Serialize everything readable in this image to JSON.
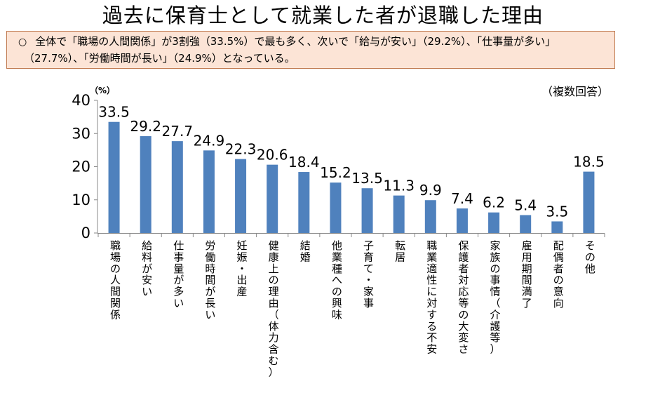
{
  "header": {
    "title": "過去に保育士として就業した者が退職した理由"
  },
  "summary": {
    "bullet": "○",
    "line1": "全体で「職場の人間関係」が3割強（33.5%）で最も多く、次いで「給与が安い」（29.2%）、「仕事量が多い」",
    "line2": "（27.7%）、「労働時間が長い」（24.9%）となっている。"
  },
  "chart_data": {
    "type": "bar",
    "unit_label": "（%）",
    "note": "（複数回答）",
    "ylim": [
      0,
      40
    ],
    "yticks": [
      0,
      10,
      20,
      30,
      40
    ],
    "bar_color": "#4f81bd",
    "categories": [
      "職場の人間関係",
      "給料が安い",
      "仕事量が多い",
      "労働時間が長い",
      "妊娠・出産",
      "健康上の理由（体力含む）",
      "結婚",
      "他業種への興味",
      "子育て・家事",
      "転居",
      "職業適性に対する不安",
      "保護者対応等の大変さ",
      "家族の事情（介護等）",
      "雇用期間満了",
      "配偶者の意向",
      "その他"
    ],
    "values": [
      33.5,
      29.2,
      27.7,
      24.9,
      22.3,
      20.6,
      18.4,
      15.2,
      13.5,
      11.3,
      9.9,
      7.4,
      6.2,
      5.4,
      3.5,
      18.5
    ],
    "value_labels": [
      "33.5",
      "29.2",
      "27.7",
      "24.9",
      "22.3",
      "20.6",
      "18.4",
      "15.2",
      "13.5",
      "11.3",
      "9.9",
      "7.4",
      "6.2",
      "5.4",
      "3.5",
      "18.5"
    ]
  }
}
